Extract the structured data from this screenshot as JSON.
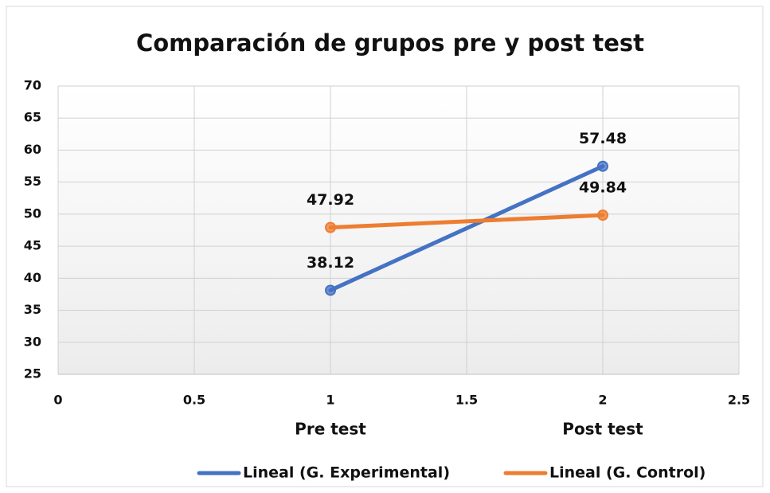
{
  "chart_data": {
    "type": "line",
    "title": "Comparación  de grupos pre y post test",
    "x": [
      1,
      2
    ],
    "categories": [
      "Pre test",
      "Post test"
    ],
    "series": [
      {
        "name": "Lineal (G. Experimental)",
        "color": "#4472c4",
        "values": [
          38.12,
          57.48
        ]
      },
      {
        "name": "Lineal (G. Control)",
        "color": "#ed7d31",
        "values": [
          47.92,
          49.84
        ]
      }
    ],
    "xlim": [
      0,
      2.5
    ],
    "xticks": [
      0,
      0.5,
      1,
      1.5,
      2,
      2.5
    ],
    "ylim": [
      25,
      70
    ],
    "yticks": [
      25,
      30,
      35,
      40,
      45,
      50,
      55,
      60,
      65,
      70
    ],
    "grid": true,
    "legend": "bottom"
  }
}
